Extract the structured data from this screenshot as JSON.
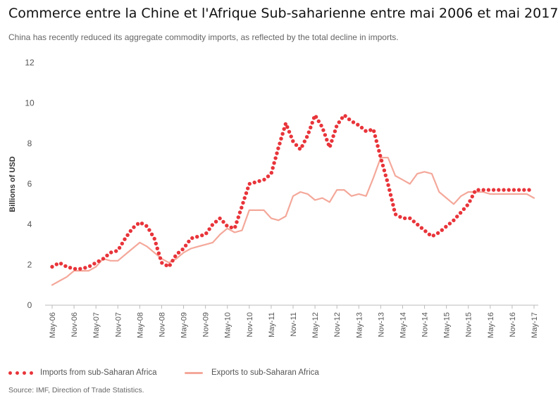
{
  "title": "Commerce entre la Chine et l'Afrique Sub-saharienne entre mai 2006 et mai 2017",
  "subtitle": "China has recently reduced its aggregate commodity imports, as reflected by the total decline in imports.",
  "source": "Source: IMF, Direction of Trade Statistics.",
  "colors": {
    "imports": "#e8343a",
    "exports": "#f4a89a",
    "axis": "#bbbbbb"
  },
  "chart_data": {
    "type": "line",
    "ylabel": "Billions of USD",
    "ylim": [
      0,
      12
    ],
    "yticks": [
      0,
      2,
      4,
      6,
      8,
      10,
      12
    ],
    "grid": false,
    "legend_position": "bottom",
    "xticks": [
      "May-06",
      "Nov-06",
      "May-07",
      "Nov-07",
      "May-08",
      "Nov-08",
      "May-09",
      "Nov-09",
      "May-10",
      "Nov-10",
      "May-11",
      "Nov-11",
      "May-12",
      "Nov-12",
      "May-13",
      "Nov-13",
      "May-14",
      "Nov-14",
      "May-15",
      "Nov-15",
      "May-16",
      "Nov-16",
      "May-17"
    ],
    "x_points": [
      "May-06",
      "Jul-06",
      "Sep-06",
      "Nov-06",
      "Jan-07",
      "Mar-07",
      "May-07",
      "Jul-07",
      "Sep-07",
      "Nov-07",
      "Jan-08",
      "Mar-08",
      "May-08",
      "Jul-08",
      "Sep-08",
      "Nov-08",
      "Jan-09",
      "Mar-09",
      "May-09",
      "Jul-09",
      "Sep-09",
      "Nov-09",
      "Jan-10",
      "Mar-10",
      "May-10",
      "Jul-10",
      "Sep-10",
      "Nov-10",
      "Jan-11",
      "Mar-11",
      "May-11",
      "Jul-11",
      "Sep-11",
      "Nov-11",
      "Jan-12",
      "Mar-12",
      "May-12",
      "Jul-12",
      "Sep-12",
      "Nov-12",
      "Jan-13",
      "Mar-13",
      "May-13",
      "Jul-13",
      "Sep-13",
      "Nov-13",
      "Jan-14",
      "Mar-14",
      "May-14",
      "Jul-14",
      "Sep-14",
      "Nov-14",
      "Jan-15",
      "Mar-15",
      "May-15",
      "Jul-15",
      "Sep-15",
      "Nov-15",
      "Jan-16",
      "Mar-16",
      "May-16",
      "Jul-16",
      "Sep-16",
      "Nov-16",
      "Jan-17",
      "Mar-17",
      "May-17"
    ],
    "series": [
      {
        "name": "Imports from sub-Saharan Africa",
        "style": "dotted",
        "values": [
          1.9,
          2.1,
          1.9,
          1.8,
          1.8,
          1.9,
          2.1,
          2.3,
          2.6,
          2.7,
          3.3,
          3.8,
          4.1,
          3.9,
          3.3,
          2.1,
          1.9,
          2.5,
          2.8,
          3.3,
          3.4,
          3.5,
          4.0,
          4.3,
          3.9,
          3.8,
          4.9,
          6.0,
          6.1,
          6.2,
          6.5,
          7.8,
          9.0,
          8.1,
          7.7,
          8.4,
          9.4,
          8.8,
          7.8,
          8.9,
          9.4,
          9.1,
          8.9,
          8.6,
          8.7,
          7.3,
          6.0,
          4.5,
          4.3,
          4.3,
          4.0,
          3.7,
          3.4,
          3.6,
          3.9,
          4.2,
          4.6,
          5.0,
          5.7,
          5.7,
          5.7,
          5.7,
          5.7,
          5.7,
          5.7,
          5.7,
          5.7
        ]
      },
      {
        "name": "Exports to sub-Saharan Africa",
        "style": "solid",
        "values": [
          1.0,
          1.2,
          1.4,
          1.7,
          1.7,
          1.7,
          1.9,
          2.3,
          2.2,
          2.2,
          2.5,
          2.8,
          3.1,
          2.9,
          2.6,
          2.3,
          2.1,
          2.3,
          2.6,
          2.8,
          2.9,
          3.0,
          3.1,
          3.5,
          3.8,
          3.6,
          3.7,
          4.7,
          4.7,
          4.7,
          4.3,
          4.2,
          4.4,
          5.4,
          5.6,
          5.5,
          5.2,
          5.3,
          5.1,
          5.7,
          5.7,
          5.4,
          5.5,
          5.4,
          6.3,
          7.3,
          7.3,
          6.4,
          6.2,
          6.0,
          6.5,
          6.6,
          6.5,
          5.6,
          5.3,
          5.0,
          5.4,
          5.6,
          5.6,
          5.6,
          5.5,
          5.5,
          5.5,
          5.5,
          5.5,
          5.5,
          5.3
        ]
      }
    ]
  }
}
